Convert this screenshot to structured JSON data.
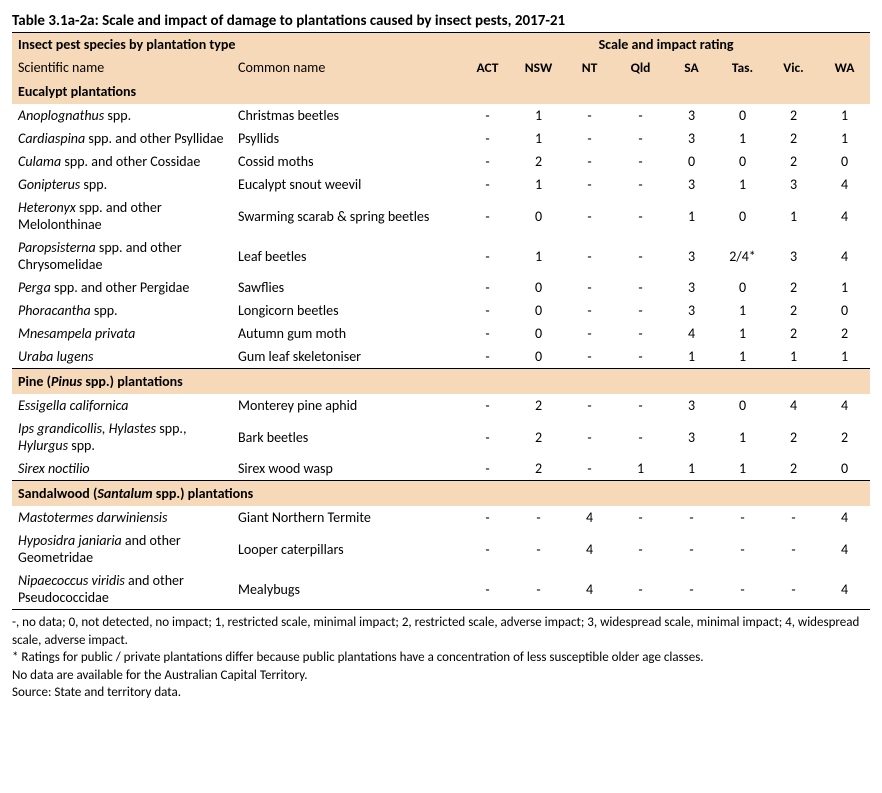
{
  "title": "Table 3.1a-2a: Scale and impact of damage to plantations caused by insect pests, 2017-21",
  "headers": {
    "species_group": "Insect pest species by plantation type",
    "rating_group": "Scale and impact rating",
    "sci": "Scientific name",
    "common": "Common name",
    "states": [
      "ACT",
      "NSW",
      "NT",
      "Qld",
      "SA",
      "Tas.",
      "Vic.",
      "WA"
    ]
  },
  "sections": [
    {
      "label": "Eucalypt plantations",
      "rows": [
        {
          "sci_html": "<i>Anoplognathus</i> spp.",
          "common": "Christmas beetles",
          "vals": [
            "-",
            "1",
            "-",
            "-",
            "3",
            "0",
            "2",
            "1"
          ]
        },
        {
          "sci_html": "<i>Cardiaspina</i> spp. and other Psyllidae",
          "common": "Psyllids",
          "vals": [
            "-",
            "1",
            "-",
            "-",
            "3",
            "1",
            "2",
            "1"
          ]
        },
        {
          "sci_html": "<i>Culama</i> spp. and other Cossidae",
          "common": "Cossid moths",
          "vals": [
            "-",
            "2",
            "-",
            "-",
            "0",
            "0",
            "2",
            "0"
          ]
        },
        {
          "sci_html": "<i>Gonipterus</i> spp.",
          "common": "Eucalypt snout weevil",
          "vals": [
            "-",
            "1",
            "-",
            "-",
            "3",
            "1",
            "3",
            "4"
          ]
        },
        {
          "sci_html": "<i>Heteronyx</i> spp. and other Melolonthinae",
          "common": "Swarming scarab & spring beetles",
          "vals": [
            "-",
            "0",
            "-",
            "-",
            "1",
            "0",
            "1",
            "4"
          ]
        },
        {
          "sci_html": "<i>Paropsisterna</i> spp. and other Chrysomelidae",
          "common": "Leaf beetles",
          "vals": [
            "-",
            "1",
            "-",
            "-",
            "3",
            "2/4*",
            "3",
            "4"
          ]
        },
        {
          "sci_html": "<i>Perga</i> spp. and other Pergidae",
          "common": "Sawflies",
          "vals": [
            "-",
            "0",
            "-",
            "-",
            "3",
            "0",
            "2",
            "1"
          ]
        },
        {
          "sci_html": "<i>Phoracantha</i> spp.",
          "common": "Longicorn beetles",
          "vals": [
            "-",
            "0",
            "-",
            "-",
            "3",
            "1",
            "2",
            "0"
          ]
        },
        {
          "sci_html": "<i>Mnesampela privata</i>",
          "common": "Autumn gum moth",
          "vals": [
            "-",
            "0",
            "-",
            "-",
            "4",
            "1",
            "2",
            "2"
          ]
        },
        {
          "sci_html": "<i>Uraba lugens</i>",
          "common": "Gum leaf skeletoniser",
          "vals": [
            "-",
            "0",
            "-",
            "-",
            "1",
            "1",
            "1",
            "1"
          ]
        }
      ]
    },
    {
      "label_html": "Pine (<i>Pinus</i> spp.) plantations",
      "rows": [
        {
          "sci_html": "<i>Essigella californica</i>",
          "common": "Monterey pine aphid",
          "vals": [
            "-",
            "2",
            "-",
            "-",
            "3",
            "0",
            "4",
            "4"
          ]
        },
        {
          "sci_html": "<i>Ips grandicollis, Hylastes</i> spp., <i>Hylurgus</i> spp.",
          "common": "Bark beetles",
          "vals": [
            "-",
            "2",
            "-",
            "-",
            "3",
            "1",
            "2",
            "2"
          ]
        },
        {
          "sci_html": "<i>Sirex noctilio</i>",
          "common": "Sirex wood wasp",
          "vals": [
            "-",
            "2",
            "-",
            "1",
            "1",
            "1",
            "2",
            "0"
          ]
        }
      ]
    },
    {
      "label_html": "Sandalwood (<i>Santalum</i> spp.) plantations",
      "rows": [
        {
          "sci_html": "<i>Mastotermes darwiniensis</i>",
          "common": "Giant Northern Termite",
          "vals": [
            "-",
            "-",
            "4",
            "-",
            "-",
            "-",
            "-",
            "4"
          ]
        },
        {
          "sci_html": "<i>Hyposidra janiaria</i> and other Geometridae",
          "common": "Looper caterpillars",
          "vals": [
            "-",
            "-",
            "4",
            "-",
            "-",
            "-",
            "-",
            "4"
          ]
        },
        {
          "sci_html": "<i>Nipaecoccus viridis</i> and other Pseudococcidae",
          "common": "Mealybugs",
          "vals": [
            "-",
            "-",
            "4",
            "-",
            "-",
            "-",
            "-",
            "4"
          ]
        }
      ]
    }
  ],
  "footnotes": [
    "-, no data; 0, not detected, no impact; 1, restricted scale, minimal impact; 2, restricted scale, adverse impact; 3, widespread scale, minimal impact; 4, widespread scale, adverse impact.",
    "* Ratings for public / private plantations differ because public plantations have a concentration of less susceptible older age classes.",
    "No data are available for the Australian Capital Territory.",
    "Source: State and territory data."
  ],
  "colors": {
    "section_bg": "#f6d9b9",
    "text": "#000000",
    "background": "#ffffff"
  }
}
